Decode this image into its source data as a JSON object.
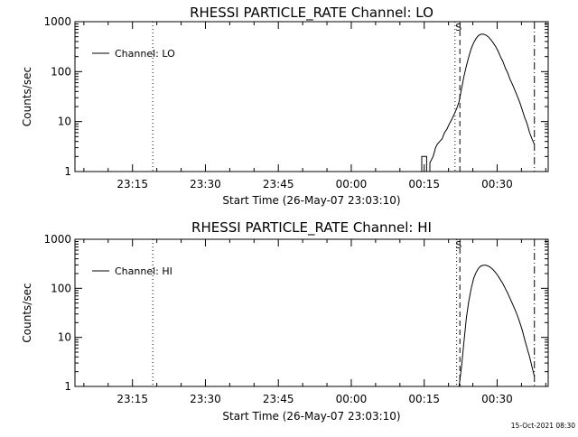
{
  "footer": {
    "timestamp": "15-Oct-2021 08:30"
  },
  "chart_data": [
    {
      "type": "line",
      "title": "RHESSI PARTICLE_RATE Channel: LO",
      "xlabel": "Start Time (26-May-07 23:03:10)",
      "ylabel": "Counts/sec",
      "yscale": "log",
      "ylim": [
        1,
        1000
      ],
      "yticks": [
        "1",
        "10",
        "100",
        "1000"
      ],
      "xlim": [
        "23:03:10",
        "00:40:30"
      ],
      "xticks": [
        {
          "value": "23:15",
          "label": "23:15"
        },
        {
          "value": "23:30",
          "label": "23:30"
        },
        {
          "value": "23:45",
          "label": "23:45"
        },
        {
          "value": "00:00",
          "label": "00:00"
        },
        {
          "value": "00:15",
          "label": "00:15"
        },
        {
          "value": "00:30",
          "label": "00:30"
        }
      ],
      "legend": {
        "placement": "top-left",
        "entries": [
          "Channel: LO"
        ]
      },
      "annotations": [
        {
          "text": "S"
        }
      ],
      "vlines": [
        {
          "x": "23:19:10",
          "style": "dotted"
        },
        {
          "x": "00:21:20",
          "style": "dotted"
        },
        {
          "x": "00:22:20",
          "style": "dashed"
        },
        {
          "x": "00:37:40",
          "style": "dashdot"
        }
      ],
      "series": [
        {
          "name": "Channel: LO",
          "x": [
            "00:14:30",
            "00:14:30",
            "00:15:30",
            "00:15:30",
            "00:16:10",
            "00:16:10",
            "00:16:50",
            "00:17:20",
            "00:17:40",
            "00:18:10",
            "00:18:40",
            "00:19:10",
            "00:19:40",
            "00:20:10",
            "00:20:40",
            "00:21:10",
            "00:21:40",
            "00:22:10",
            "00:22:40",
            "00:23:10",
            "00:23:40",
            "00:24:10",
            "00:24:40",
            "00:25:10",
            "00:25:40",
            "00:26:10",
            "00:26:40",
            "00:27:10",
            "00:27:40",
            "00:28:10",
            "00:28:40",
            "00:29:10",
            "00:29:40",
            "00:30:10",
            "00:30:40",
            "00:31:10",
            "00:31:40",
            "00:32:10",
            "00:32:40",
            "00:33:10",
            "00:33:40",
            "00:34:10",
            "00:34:40",
            "00:35:10",
            "00:35:40",
            "00:36:10",
            "00:36:40",
            "00:37:10",
            "00:37:40"
          ],
          "y": [
            1,
            2,
            2,
            1,
            1,
            1.5,
            2,
            3,
            3.5,
            4,
            4.5,
            6,
            7,
            9,
            11,
            14,
            18,
            25,
            45,
            80,
            130,
            200,
            290,
            380,
            460,
            530,
            560,
            560,
            540,
            500,
            440,
            380,
            320,
            260,
            200,
            160,
            120,
            95,
            70,
            55,
            42,
            32,
            24,
            17,
            12,
            9,
            6,
            4.5,
            3.5
          ]
        }
      ]
    },
    {
      "type": "line",
      "title": "RHESSI PARTICLE_RATE Channel: HI",
      "xlabel": "Start Time (26-May-07 23:03:10)",
      "ylabel": "Counts/sec",
      "yscale": "log",
      "ylim": [
        1,
        1000
      ],
      "yticks": [
        "1",
        "10",
        "100",
        "1000"
      ],
      "xlim": [
        "23:03:10",
        "00:40:30"
      ],
      "xticks": [
        {
          "value": "23:15",
          "label": "23:15"
        },
        {
          "value": "23:30",
          "label": "23:30"
        },
        {
          "value": "23:45",
          "label": "23:45"
        },
        {
          "value": "00:00",
          "label": "00:00"
        },
        {
          "value": "00:15",
          "label": "00:15"
        },
        {
          "value": "00:30",
          "label": "00:30"
        }
      ],
      "legend": {
        "placement": "top-left",
        "entries": [
          "Channel: HI"
        ]
      },
      "annotations": [
        {
          "text": "S"
        }
      ],
      "vlines": [
        {
          "x": "23:19:10",
          "style": "dotted"
        },
        {
          "x": "00:21:40",
          "style": "dotted"
        },
        {
          "x": "00:22:20",
          "style": "dashed"
        },
        {
          "x": "00:37:40",
          "style": "dashdot"
        }
      ],
      "series": [
        {
          "name": "Channel: HI",
          "x": [
            "00:22:10",
            "00:22:40",
            "00:23:10",
            "00:23:40",
            "00:24:10",
            "00:24:40",
            "00:25:10",
            "00:25:40",
            "00:26:10",
            "00:26:40",
            "00:27:10",
            "00:27:40",
            "00:28:10",
            "00:28:40",
            "00:29:10",
            "00:29:40",
            "00:30:10",
            "00:30:40",
            "00:31:10",
            "00:31:40",
            "00:32:10",
            "00:32:40",
            "00:33:10",
            "00:33:40",
            "00:34:10",
            "00:34:40",
            "00:35:10",
            "00:35:40",
            "00:36:10",
            "00:36:40",
            "00:37:10",
            "00:37:40"
          ],
          "y": [
            1,
            2.5,
            8,
            25,
            55,
            100,
            160,
            210,
            255,
            285,
            295,
            295,
            285,
            265,
            240,
            210,
            180,
            150,
            125,
            100,
            80,
            62,
            48,
            37,
            28,
            20,
            14,
            9,
            6,
            4,
            2.5,
            1.6
          ]
        }
      ]
    }
  ]
}
